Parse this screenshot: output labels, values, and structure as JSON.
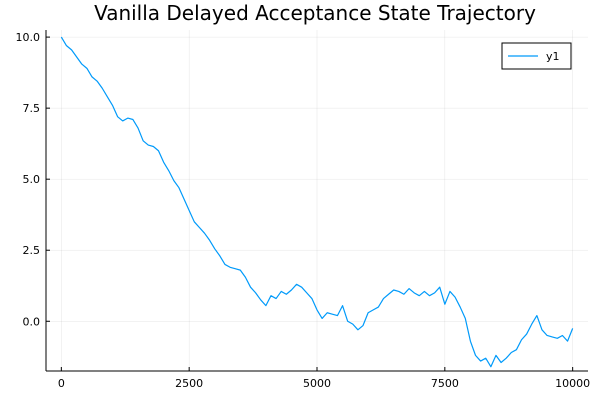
{
  "chart_data": {
    "type": "line",
    "title": "Vanilla Delayed Acceptance State Trajectory",
    "xlabel": "",
    "ylabel": "",
    "xlim": [
      -300,
      10300
    ],
    "ylim": [
      -1.75,
      10.25
    ],
    "xticks": [
      0,
      2500,
      5000,
      7500,
      10000
    ],
    "xtick_labels": [
      "0",
      "2500",
      "5000",
      "7500",
      "10000"
    ],
    "yticks": [
      0.0,
      2.5,
      5.0,
      7.5,
      10.0
    ],
    "ytick_labels": [
      "0.0",
      "2.5",
      "5.0",
      "7.5",
      "10.0"
    ],
    "grid": true,
    "legend": "top-right",
    "series": [
      {
        "name": "y1",
        "color": "#009AFA",
        "x": [
          0,
          100,
          200,
          300,
          400,
          500,
          600,
          700,
          800,
          900,
          1000,
          1100,
          1200,
          1300,
          1400,
          1500,
          1600,
          1700,
          1800,
          1900,
          2000,
          2100,
          2200,
          2300,
          2400,
          2500,
          2600,
          2700,
          2800,
          2900,
          3000,
          3100,
          3200,
          3300,
          3400,
          3500,
          3600,
          3700,
          3800,
          3900,
          4000,
          4100,
          4200,
          4300,
          4400,
          4500,
          4600,
          4700,
          4800,
          4900,
          5000,
          5100,
          5200,
          5300,
          5400,
          5500,
          5600,
          5700,
          5800,
          5900,
          6000,
          6100,
          6200,
          6300,
          6400,
          6500,
          6600,
          6700,
          6800,
          6900,
          7000,
          7100,
          7200,
          7300,
          7400,
          7500,
          7600,
          7700,
          7800,
          7900,
          8000,
          8100,
          8200,
          8300,
          8400,
          8500,
          8600,
          8700,
          8800,
          8900,
          9000,
          9100,
          9200,
          9300,
          9400,
          9500,
          9600,
          9700,
          9800,
          9900,
          10000
        ],
        "y": [
          10.0,
          9.7,
          9.55,
          9.3,
          9.05,
          8.9,
          8.6,
          8.45,
          8.2,
          7.9,
          7.6,
          7.2,
          7.05,
          7.15,
          7.1,
          6.8,
          6.35,
          6.2,
          6.15,
          6.0,
          5.6,
          5.3,
          4.95,
          4.7,
          4.3,
          3.9,
          3.5,
          3.3,
          3.1,
          2.85,
          2.55,
          2.3,
          2.0,
          1.9,
          1.85,
          1.8,
          1.55,
          1.2,
          1.0,
          0.75,
          0.55,
          0.9,
          0.8,
          1.05,
          0.95,
          1.1,
          1.3,
          1.2,
          1.0,
          0.8,
          0.4,
          0.1,
          0.3,
          0.25,
          0.2,
          0.55,
          0.0,
          -0.1,
          -0.3,
          -0.15,
          0.3,
          0.4,
          0.5,
          0.8,
          0.95,
          1.1,
          1.05,
          0.95,
          1.15,
          1.0,
          0.9,
          1.05,
          0.9,
          1.0,
          1.2,
          0.6,
          1.05,
          0.85,
          0.5,
          0.1,
          -0.7,
          -1.2,
          -1.4,
          -1.3,
          -1.6,
          -1.2,
          -1.45,
          -1.3,
          -1.1,
          -1.0,
          -0.65,
          -0.45,
          -0.1,
          0.2,
          -0.3,
          -0.5,
          -0.55,
          -0.6,
          -0.5,
          -0.7,
          -0.25
        ]
      }
    ]
  }
}
